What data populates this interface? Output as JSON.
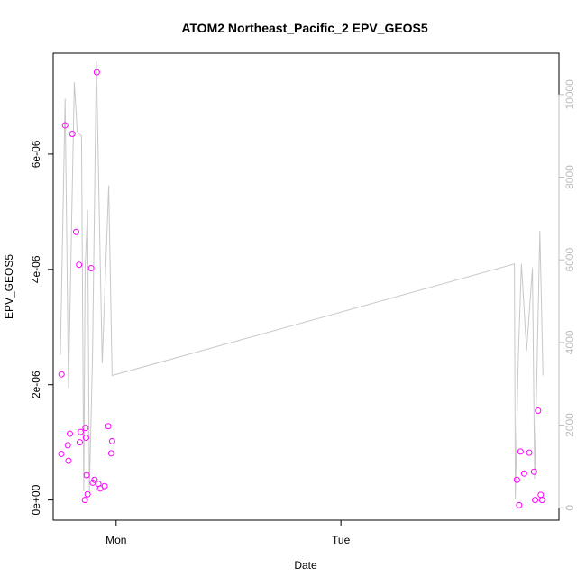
{
  "chart_data": {
    "type": "scatter",
    "title": "ATOM2 Northeast_Pacific_2 EPV_GEOS5",
    "xlabel": "Date",
    "ylabel": "EPV_GEOS5",
    "ylabel_right": "",
    "x_ticks": [
      {
        "value": 1.0,
        "label": "Mon"
      },
      {
        "value": 2.0,
        "label": "Tue"
      }
    ],
    "y_ticks": [
      {
        "value": 0,
        "label": "0e+00"
      },
      {
        "value": 2e-06,
        "label": "2e-06"
      },
      {
        "value": 4e-06,
        "label": "4e-06"
      },
      {
        "value": 6e-06,
        "label": "6e-06"
      }
    ],
    "y2_ticks": [
      {
        "value": 0,
        "label": "0"
      },
      {
        "value": 2000,
        "label": "2000"
      },
      {
        "value": 4000,
        "label": "4000"
      },
      {
        "value": 6000,
        "label": "6000"
      },
      {
        "value": 8000,
        "label": "8000"
      },
      {
        "value": 10000,
        "label": "10000"
      }
    ],
    "xlim": [
      0.72,
      2.97
    ],
    "ylim": [
      -3.5e-07,
      7.75e-06
    ],
    "y2lim": [
      -300,
      11000
    ],
    "series": [
      {
        "kind": "points",
        "color": "#ff00ff",
        "axis": "left",
        "points": [
          [
            0.756,
            8e-07
          ],
          [
            0.773,
            6.5e-06
          ],
          [
            0.785,
            9.5e-07
          ],
          [
            0.788,
            6.8e-07
          ],
          [
            0.794,
            1.15e-06
          ],
          [
            0.805,
            6.35e-06
          ],
          [
            0.822,
            4.65e-06
          ],
          [
            0.835,
            4.08e-06
          ],
          [
            0.838,
            1e-06
          ],
          [
            0.842,
            1.18e-06
          ],
          [
            0.861,
            0.0
          ],
          [
            0.864,
            1.25e-06
          ],
          [
            0.866,
            1.08e-06
          ],
          [
            0.869,
            4.3e-07
          ],
          [
            0.873,
            1e-07
          ],
          [
            0.889,
            4.02e-06
          ],
          [
            0.896,
            3e-07
          ],
          [
            0.904,
            3.5e-07
          ],
          [
            0.914,
            7.42e-06
          ],
          [
            0.921,
            2.8e-07
          ],
          [
            0.929,
            2e-07
          ],
          [
            0.949,
            2.4e-07
          ],
          [
            0.965,
            1.28e-06
          ],
          [
            0.978,
            8.1e-07
          ],
          [
            0.982,
            1.02e-06
          ],
          [
            0.757,
            2.18e-06
          ],
          [
            2.783,
            3.5e-07
          ],
          [
            2.793,
            -9e-08
          ],
          [
            2.799,
            8.4e-07
          ],
          [
            2.815,
            4.6e-07
          ],
          [
            2.838,
            8.2e-07
          ],
          [
            2.859,
            4.9e-07
          ],
          [
            2.864,
            0.0
          ],
          [
            2.877,
            1.55e-06
          ],
          [
            2.889,
            9e-08
          ],
          [
            2.895,
            0.0
          ]
        ]
      },
      {
        "kind": "line",
        "color": "#c8c8c8",
        "axis": "right",
        "points": [
          [
            0.752,
            3700
          ],
          [
            0.773,
            9900
          ],
          [
            0.788,
            2900
          ],
          [
            0.814,
            10300
          ],
          [
            0.827,
            9100
          ],
          [
            0.834,
            9050
          ],
          [
            0.846,
            9000
          ],
          [
            0.856,
            400
          ],
          [
            0.862,
            5800
          ],
          [
            0.873,
            7200
          ],
          [
            0.881,
            400
          ],
          [
            0.895,
            3700
          ],
          [
            0.912,
            10800
          ],
          [
            0.938,
            3500
          ],
          [
            0.967,
            7800
          ],
          [
            0.982,
            3200
          ],
          [
            2.772,
            5900
          ],
          [
            2.776,
            200
          ],
          [
            2.789,
            3600
          ],
          [
            2.803,
            5900
          ],
          [
            2.826,
            3800
          ],
          [
            2.852,
            5800
          ],
          [
            2.862,
            700
          ],
          [
            2.885,
            6700
          ],
          [
            2.899,
            3200
          ]
        ]
      }
    ],
    "grid": false
  }
}
